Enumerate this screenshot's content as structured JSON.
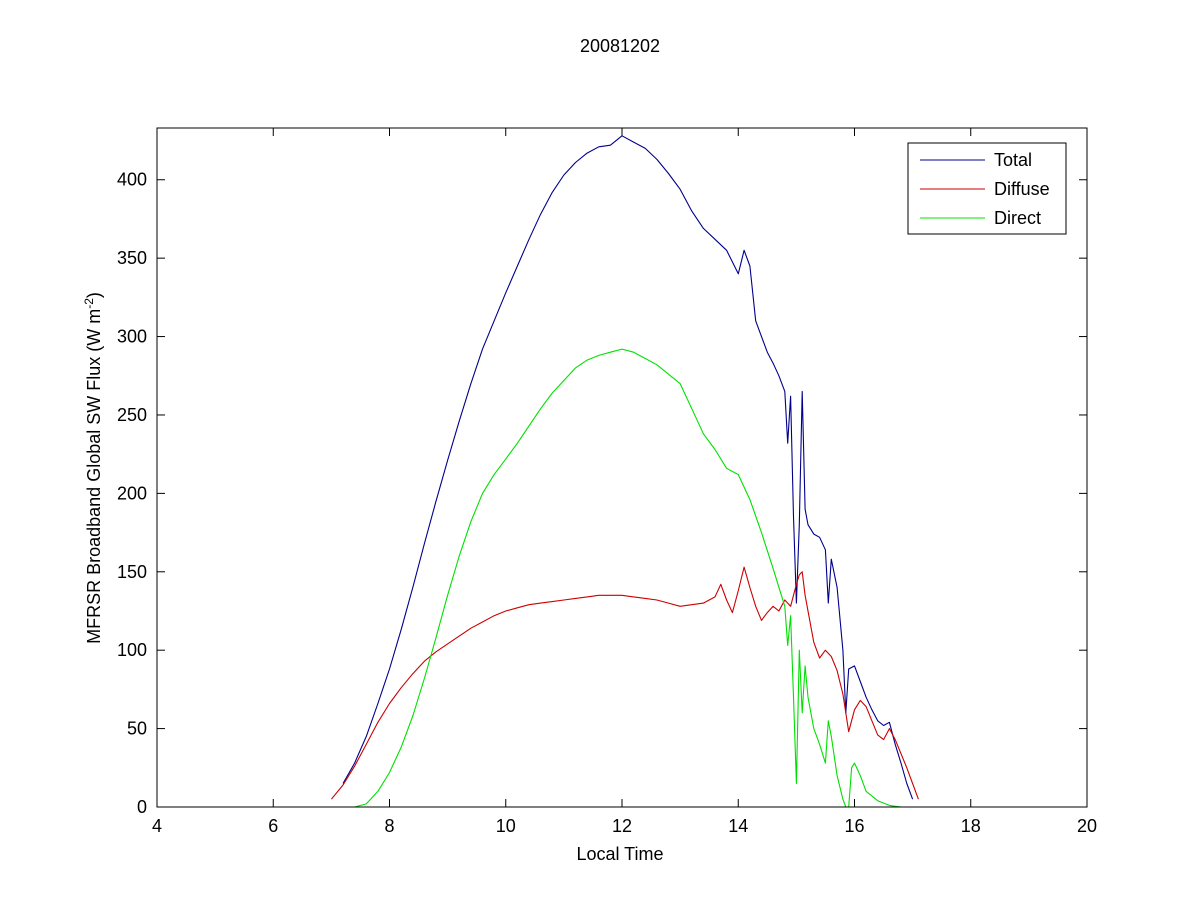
{
  "chart_data": {
    "type": "line",
    "title": "20081202",
    "xlabel": "Local Time",
    "ylabel": "MFRSR Broadband Global SW Flux (W m",
    "ylabel_sup": "-2",
    "ylabel_close": ")",
    "xlim": [
      4,
      20
    ],
    "ylim": [
      0,
      433
    ],
    "xticks": [
      4,
      6,
      8,
      10,
      12,
      14,
      16,
      18,
      20
    ],
    "yticks": [
      0,
      50,
      100,
      150,
      200,
      250,
      300,
      350,
      400
    ],
    "grid": false,
    "legend_position": "top-right",
    "series": [
      {
        "name": "Total",
        "color": "#00008b",
        "x": [
          7.2,
          7.4,
          7.6,
          7.8,
          8.0,
          8.2,
          8.4,
          8.6,
          8.8,
          9.0,
          9.2,
          9.4,
          9.6,
          9.8,
          10.0,
          10.2,
          10.4,
          10.6,
          10.8,
          11.0,
          11.2,
          11.4,
          11.6,
          11.8,
          12.0,
          12.2,
          12.4,
          12.6,
          12.8,
          13.0,
          13.2,
          13.4,
          13.6,
          13.8,
          14.0,
          14.1,
          14.2,
          14.3,
          14.4,
          14.5,
          14.6,
          14.7,
          14.8,
          14.85,
          14.9,
          14.95,
          15.0,
          15.05,
          15.1,
          15.15,
          15.2,
          15.3,
          15.4,
          15.5,
          15.55,
          15.6,
          15.7,
          15.8,
          15.85,
          15.9,
          16.0,
          16.1,
          16.2,
          16.3,
          16.4,
          16.5,
          16.6,
          16.7,
          16.8,
          16.9,
          17.0
        ],
        "y": [
          15,
          28,
          45,
          66,
          88,
          113,
          140,
          168,
          195,
          221,
          246,
          270,
          292,
          310,
          328,
          345,
          362,
          378,
          392,
          403,
          411,
          417,
          421,
          422,
          428,
          424,
          420,
          413,
          404,
          394,
          380,
          369,
          362,
          355,
          340,
          355,
          345,
          310,
          300,
          290,
          283,
          275,
          265,
          232,
          262,
          185,
          130,
          180,
          265,
          190,
          180,
          174,
          172,
          164,
          130,
          158,
          140,
          100,
          60,
          88,
          90,
          80,
          70,
          62,
          55,
          52,
          54,
          40,
          28,
          15,
          5
        ]
      },
      {
        "name": "Diffuse",
        "color": "#cc0000",
        "x": [
          7.0,
          7.2,
          7.4,
          7.6,
          7.8,
          8.0,
          8.2,
          8.4,
          8.6,
          8.8,
          9.0,
          9.2,
          9.4,
          9.6,
          9.8,
          10.0,
          10.2,
          10.4,
          10.6,
          10.8,
          11.0,
          11.2,
          11.4,
          11.6,
          11.8,
          12.0,
          12.2,
          12.4,
          12.6,
          12.8,
          13.0,
          13.2,
          13.4,
          13.6,
          13.7,
          13.8,
          13.9,
          14.0,
          14.1,
          14.2,
          14.3,
          14.4,
          14.5,
          14.6,
          14.7,
          14.8,
          14.9,
          15.0,
          15.05,
          15.1,
          15.15,
          15.2,
          15.3,
          15.4,
          15.5,
          15.6,
          15.7,
          15.8,
          15.9,
          16.0,
          16.1,
          16.2,
          16.3,
          16.4,
          16.5,
          16.6,
          16.7,
          16.8,
          16.9,
          17.0,
          17.1
        ],
        "y": [
          5,
          14,
          26,
          40,
          54,
          66,
          76,
          85,
          93,
          99,
          104,
          109,
          114,
          118,
          122,
          125,
          127,
          129,
          130,
          131,
          132,
          133,
          134,
          135,
          135,
          135,
          134,
          133,
          132,
          130,
          128,
          129,
          130,
          134,
          142,
          132,
          124,
          138,
          153,
          140,
          128,
          119,
          124,
          128,
          125,
          132,
          128,
          142,
          148,
          150,
          135,
          125,
          105,
          95,
          100,
          96,
          87,
          72,
          48,
          62,
          68,
          64,
          55,
          46,
          43,
          50,
          43,
          34,
          25,
          15,
          5
        ]
      },
      {
        "name": "Direct",
        "color": "#00e000",
        "x": [
          7.4,
          7.6,
          7.8,
          8.0,
          8.2,
          8.4,
          8.6,
          8.8,
          9.0,
          9.2,
          9.4,
          9.6,
          9.8,
          10.0,
          10.2,
          10.4,
          10.6,
          10.8,
          11.0,
          11.2,
          11.4,
          11.6,
          11.8,
          12.0,
          12.2,
          12.4,
          12.6,
          12.8,
          13.0,
          13.2,
          13.4,
          13.6,
          13.8,
          14.0,
          14.2,
          14.4,
          14.6,
          14.8,
          14.85,
          14.9,
          14.95,
          15.0,
          15.05,
          15.1,
          15.15,
          15.2,
          15.3,
          15.4,
          15.5,
          15.55,
          15.6,
          15.7,
          15.8,
          15.85,
          15.9,
          15.95,
          16.0,
          16.1,
          16.2,
          16.4,
          16.6,
          16.8,
          17.0
        ],
        "y": [
          0,
          2,
          10,
          22,
          38,
          58,
          82,
          108,
          135,
          160,
          182,
          200,
          212,
          222,
          232,
          243,
          254,
          264,
          272,
          280,
          285,
          288,
          290,
          292,
          290,
          286,
          282,
          276,
          270,
          254,
          238,
          228,
          216,
          212,
          196,
          175,
          152,
          128,
          103,
          122,
          70,
          15,
          100,
          60,
          90,
          70,
          50,
          40,
          28,
          55,
          45,
          20,
          5,
          0,
          0,
          25,
          28,
          20,
          10,
          4,
          1,
          0,
          0
        ]
      }
    ]
  }
}
